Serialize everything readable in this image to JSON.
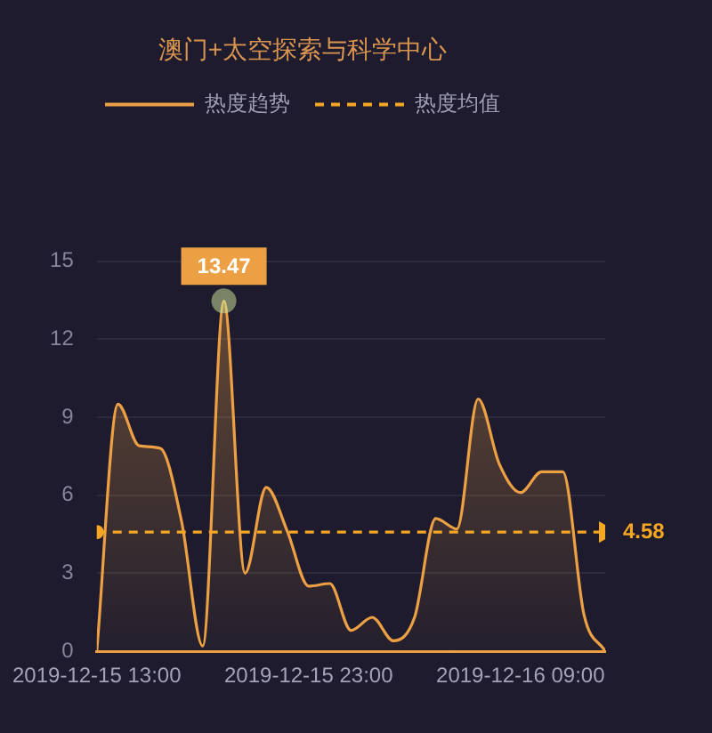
{
  "chart_data": {
    "type": "area",
    "title": "澳门+太空探索与科学中心",
    "x": [
      "2019-12-15T13:00",
      "2019-12-15T14:00",
      "2019-12-15T15:00",
      "2019-12-15T16:00",
      "2019-12-15T17:00",
      "2019-12-15T18:00",
      "2019-12-15T19:00",
      "2019-12-15T20:00",
      "2019-12-15T21:00",
      "2019-12-15T22:00",
      "2019-12-15T23:00",
      "2019-12-16T00:00",
      "2019-12-16T01:00",
      "2019-12-16T02:00",
      "2019-12-16T03:00",
      "2019-12-16T04:00",
      "2019-12-16T05:00",
      "2019-12-16T06:00",
      "2019-12-16T07:00",
      "2019-12-16T08:00",
      "2019-12-16T09:00",
      "2019-12-16T10:00",
      "2019-12-16T11:00",
      "2019-12-16T12:00",
      "2019-12-16T13:00"
    ],
    "xlim": [
      "2019-12-15T13:00",
      "2019-12-16T13:00"
    ],
    "xticks": [
      {
        "value": "2019-12-15T13:00",
        "label": "2019-12-15 13:00"
      },
      {
        "value": "2019-12-15T23:00",
        "label": "2019-12-15 23:00"
      },
      {
        "value": "2019-12-16T09:00",
        "label": "2019-12-16 09:00"
      }
    ],
    "ylim": [
      0,
      15
    ],
    "yticks": [
      0,
      3,
      6,
      9,
      12,
      15
    ],
    "grid": "y",
    "legend": "top",
    "series": [
      {
        "name": "热度趋势",
        "color": "#eda043",
        "values": [
          0,
          9.5,
          7.9,
          7.8,
          5.0,
          0.2,
          13.47,
          3.0,
          6.3,
          4.6,
          2.5,
          2.6,
          0.8,
          1.3,
          0.4,
          1.3,
          5.1,
          4.7,
          9.7,
          7.2,
          6.1,
          6.9,
          6.9,
          1.4,
          0
        ]
      },
      {
        "name": "热度均值",
        "type": "line",
        "line_style": "dashed",
        "marker": "circle",
        "color": "#f5a623",
        "x": [
          "2019-12-15T13:00",
          "2019-12-16T13:00"
        ],
        "values": [
          4.58,
          4.58
        ],
        "value_labels": [
          null,
          "4.58"
        ]
      }
    ],
    "annotations": [
      {
        "text": "13.47",
        "x": "2019-12-15T19:00",
        "y": 13.47
      }
    ]
  }
}
